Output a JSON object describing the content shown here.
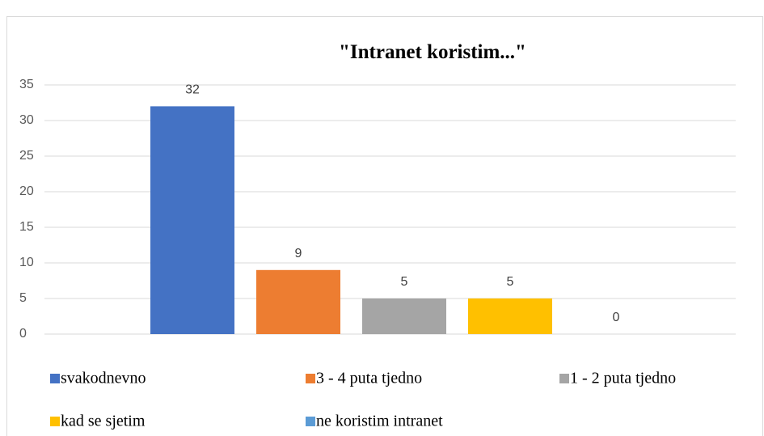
{
  "chart_data": {
    "type": "bar",
    "title": "\"Intranet koristim...\"",
    "categories": [
      null
    ],
    "series": [
      {
        "name": "svakodnevno",
        "color": "#4472c4",
        "values": [
          32
        ]
      },
      {
        "name": "3 - 4 puta tjedno",
        "color": "#ed7d31",
        "values": [
          9
        ]
      },
      {
        "name": "1 - 2 puta tjedno",
        "color": "#a5a5a5",
        "values": [
          5
        ]
      },
      {
        "name": "kad se sjetim",
        "color": "#ffc000",
        "values": [
          5
        ]
      },
      {
        "name": "ne koristim intranet",
        "color": "#5b9bd5",
        "values": [
          0
        ]
      }
    ],
    "ylim": [
      0,
      35
    ],
    "yticks": [
      0,
      5,
      10,
      15,
      20,
      25,
      30,
      35
    ],
    "grid": true,
    "legend": "bottom"
  }
}
